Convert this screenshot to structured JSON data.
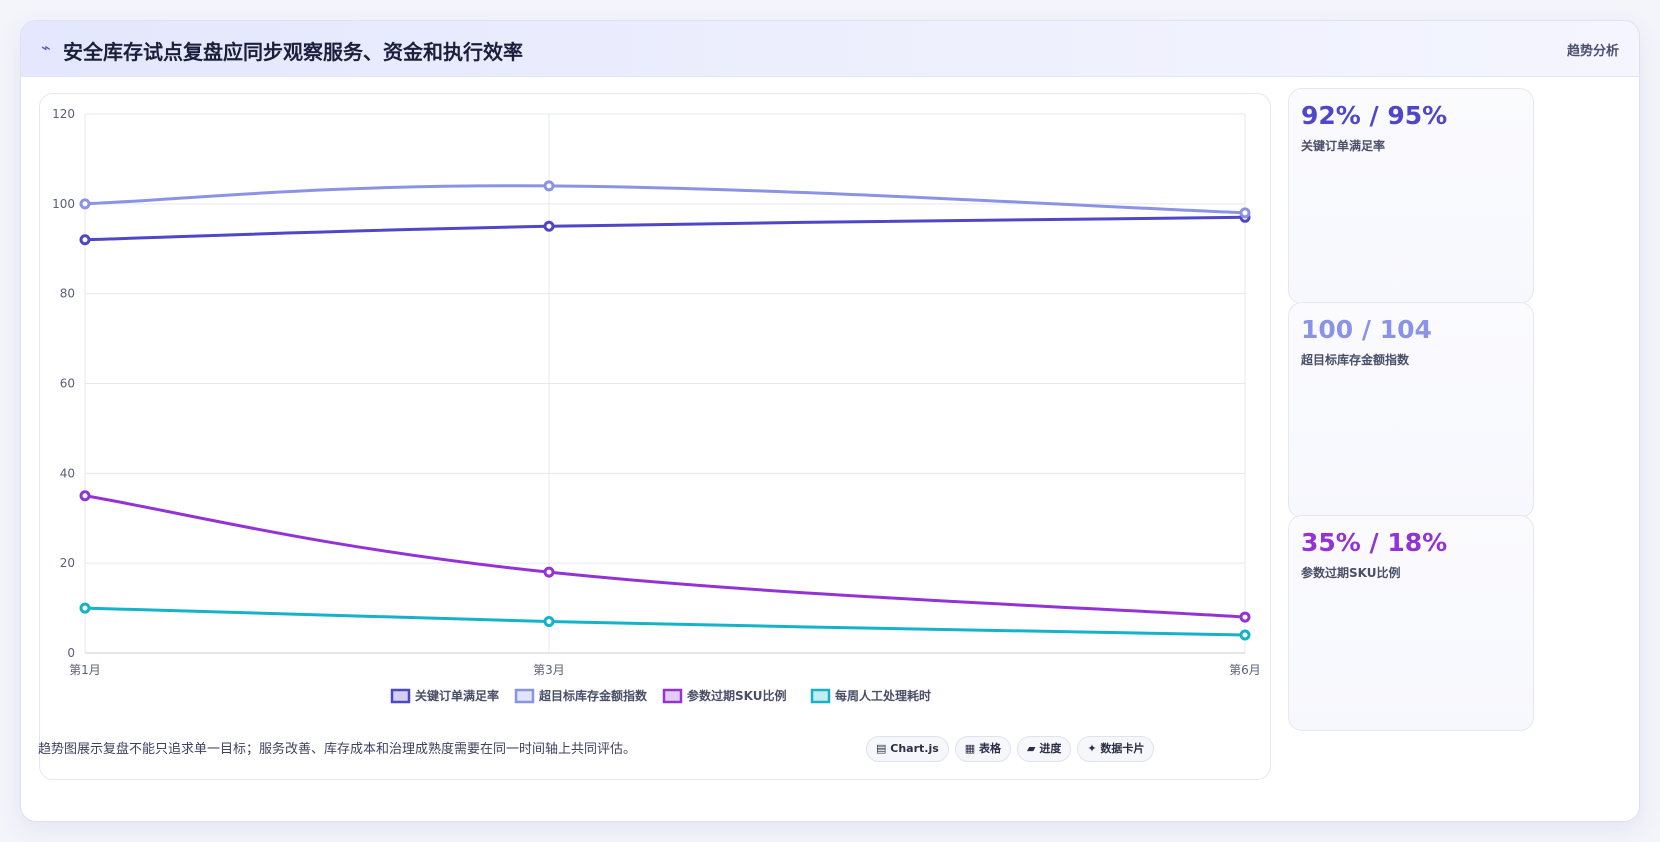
{
  "header": {
    "icon": "trend-icon",
    "title": "安全库存试点复盘应同步观察服务、资金和执行效率",
    "badge": "趋势分析"
  },
  "kpis": [
    {
      "value": "92% / 95%",
      "label": "关键订单满足率",
      "color": "#4f46c8"
    },
    {
      "value": "100 / 104",
      "label": "超目标库存金额指数",
      "color": "#8b93e6"
    },
    {
      "value": "35% / 18%",
      "label": "参数过期SKU比例",
      "color": "#9333d6"
    }
  ],
  "footnote": "趋势图展示复盘不能只追求单一目标；服务改善、库存成本和治理成熟度需要在同一时间轴上共同评估。",
  "pills": [
    {
      "icon": "▤",
      "label": "Chart.js"
    },
    {
      "icon": "▦",
      "label": "表格"
    },
    {
      "icon": "▰",
      "label": "进度"
    },
    {
      "icon": "✦",
      "label": "数据卡片"
    }
  ],
  "chart_data": {
    "type": "line",
    "categories": [
      "第1月",
      "第3月",
      "第6月"
    ],
    "x_positions": [
      1,
      3,
      6
    ],
    "ylim": [
      0,
      120
    ],
    "yticks": [
      0,
      20,
      40,
      60,
      80,
      100,
      120
    ],
    "grid": true,
    "legend": "bottom",
    "series": [
      {
        "name": "关键订单满足率",
        "values": [
          92,
          95,
          97
        ],
        "color": "#4f46c8"
      },
      {
        "name": "超目标库存金额指数",
        "values": [
          100,
          104,
          98
        ],
        "color": "#8b93e6"
      },
      {
        "name": "参数过期SKU比例",
        "values": [
          35,
          18,
          8
        ],
        "color": "#9333d6"
      },
      {
        "name": "每周人工处理耗时",
        "values": [
          10,
          7,
          4
        ],
        "color": "#14b3c8"
      }
    ]
  }
}
